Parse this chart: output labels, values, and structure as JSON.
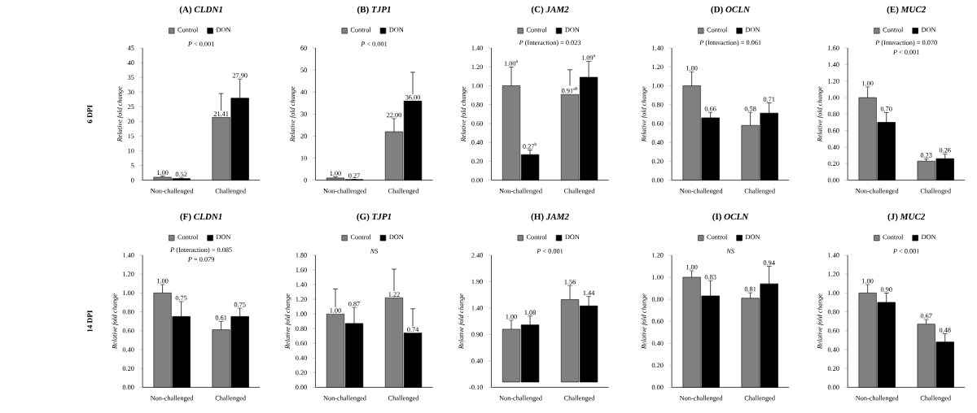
{
  "chart_data": [
    {
      "type": "bar",
      "title": "(A) *CLDN1*",
      "ylabel": "Relative fold change",
      "categories": [
        "Non-challenged",
        "Challenged"
      ],
      "ylim": [
        0,
        45
      ],
      "yticks": [
        0,
        5,
        10,
        15,
        20,
        25,
        30,
        35,
        40,
        45
      ],
      "legend": "top",
      "annotations": [
        "6 DPI",
        "*P* < 0.001"
      ],
      "series": [
        {
          "name": "Control",
          "color": "#808080",
          "values": [
            1.0,
            21.41
          ],
          "errors": [
            [
              1.0,
              1.4
            ],
            [
              21.41,
              29.5
            ]
          ],
          "value_labels": [
            "1.00",
            "21.41"
          ]
        },
        {
          "name": "DON",
          "color": "#000000",
          "values": [
            0.52,
            27.9
          ],
          "errors": [
            [
              0.52,
              0.8
            ],
            [
              27.9,
              34.5
            ]
          ],
          "value_labels": [
            "0.52",
            "27.90"
          ]
        }
      ]
    },
    {
      "type": "bar",
      "title": "(B) *TJP1*",
      "ylabel": "Relative fold change",
      "categories": [
        "Non-challenged",
        "Challenged"
      ],
      "ylim": [
        0,
        60
      ],
      "yticks": [
        0,
        10,
        20,
        30,
        40,
        50,
        60
      ],
      "legend": "top",
      "annotations": [
        "*P* < 0.001"
      ],
      "series": [
        {
          "name": "Control",
          "color": "#808080",
          "values": [
            1.0,
            22.0
          ],
          "errors": [
            [
              1.0,
              1.5
            ],
            [
              22.0,
              28
            ]
          ],
          "value_labels": [
            "1.00",
            "22.00"
          ]
        },
        {
          "name": "DON",
          "color": "#000000",
          "values": [
            0.27,
            36.0
          ],
          "errors": [
            [
              0.27,
              0.5
            ],
            [
              36.0,
              49
            ]
          ],
          "value_labels": [
            "0.27",
            "36.00"
          ]
        }
      ]
    },
    {
      "type": "bar",
      "title": "(C) *JAM2*",
      "ylabel": "Relative fold change",
      "categories": [
        "Non-challenged",
        "Challenged"
      ],
      "ylim": [
        0,
        1.4
      ],
      "yticks": [
        {
          "value": 0,
          "label": "0.00"
        },
        {
          "value": 0.2,
          "label": "0.20"
        },
        {
          "value": 0.4,
          "label": "0.40"
        },
        {
          "value": 0.6,
          "label": "0.60"
        },
        {
          "value": 0.8,
          "label": "0.80"
        },
        {
          "value": 1.0,
          "label": "1.00"
        },
        {
          "value": 1.2,
          "label": "1.20"
        },
        {
          "value": 1.4,
          "label": "1.40"
        }
      ],
      "legend": "top",
      "annotations": [
        "*P* (Interaction) = 0.023"
      ],
      "series": [
        {
          "name": "Control",
          "color": "#808080",
          "values": [
            1.0,
            0.91
          ],
          "errors": [
            [
              1.0,
              1.2
            ],
            [
              0.91,
              1.17
            ]
          ],
          "value_labels": [
            "1.00$^{a}$",
            "0.91$^{ab}$"
          ]
        },
        {
          "name": "DON",
          "color": "#000000",
          "values": [
            0.27,
            1.09
          ],
          "errors": [
            [
              0.27,
              0.32
            ],
            [
              1.09,
              1.26
            ]
          ],
          "value_labels": [
            "0.27$^{b}$",
            "1.09$^{a}$"
          ]
        }
      ]
    },
    {
      "type": "bar",
      "title": "(D) *OCLN*",
      "ylabel": "Relative fold change",
      "categories": [
        "Non-challenged",
        "Challenged"
      ],
      "ylim": [
        0,
        1.4
      ],
      "yticks": [
        {
          "value": 0,
          "label": "0.00"
        },
        {
          "value": 0.2,
          "label": "0.20"
        },
        {
          "value": 0.4,
          "label": "0.40"
        },
        {
          "value": 0.6,
          "label": "0.60"
        },
        {
          "value": 0.8,
          "label": "0.80"
        },
        {
          "value": 1.0,
          "label": "1.00"
        },
        {
          "value": 1.2,
          "label": "1.20"
        },
        {
          "value": 1.4,
          "label": "1.40"
        }
      ],
      "legend": "top",
      "annotations": [
        "*P* (Interaction) = 0.061"
      ],
      "series": [
        {
          "name": "Control",
          "color": "#808080",
          "values": [
            1.0,
            0.58
          ],
          "errors": [
            [
              1.0,
              1.15
            ],
            [
              0.58,
              0.72
            ]
          ],
          "value_labels": [
            "1.00",
            "0.58"
          ]
        },
        {
          "name": "DON",
          "color": "#000000",
          "values": [
            0.66,
            0.71
          ],
          "errors": [
            [
              0.66,
              0.72
            ],
            [
              0.71,
              0.82
            ]
          ],
          "value_labels": [
            "0.66",
            "0.71"
          ]
        }
      ]
    },
    {
      "type": "bar",
      "title": "(E) *MUC2*",
      "ylabel": "Relative fold change",
      "categories": [
        "Non-challenged",
        "Challenged"
      ],
      "ylim": [
        0,
        1.6
      ],
      "yticks": [
        {
          "value": 0,
          "label": "0.00"
        },
        {
          "value": 0.2,
          "label": "0.20"
        },
        {
          "value": 0.4,
          "label": "0.40"
        },
        {
          "value": 0.6,
          "label": "0.60"
        },
        {
          "value": 0.8,
          "label": "0.80"
        },
        {
          "value": 1.0,
          "label": "1.00"
        },
        {
          "value": 1.2,
          "label": "1.20"
        },
        {
          "value": 1.4,
          "label": "1.40"
        },
        {
          "value": 1.6,
          "label": "1.60"
        }
      ],
      "legend": "top",
      "annotations": [
        "*P* (Interaction) = 0.070",
        "*P* < 0.001"
      ],
      "series": [
        {
          "name": "Control",
          "color": "#808080",
          "values": [
            1.0,
            0.23
          ],
          "errors": [
            [
              1.0,
              1.13
            ],
            [
              0.23,
              0.26
            ]
          ],
          "value_labels": [
            "1.00",
            "0.23"
          ]
        },
        {
          "name": "DON",
          "color": "#000000",
          "values": [
            0.7,
            0.26
          ],
          "errors": [
            [
              0.7,
              0.82
            ],
            [
              0.26,
              0.32
            ]
          ],
          "value_labels": [
            "0.70",
            "0.26"
          ]
        }
      ]
    },
    {
      "type": "bar",
      "title": "(F) *CLDN1*",
      "ylabel": "Relative fold change",
      "categories": [
        "Non-challenged",
        "Challenged"
      ],
      "ylim": [
        0,
        1.4
      ],
      "yticks": [
        {
          "value": 0,
          "label": "0.00"
        },
        {
          "value": 0.2,
          "label": "0.20"
        },
        {
          "value": 0.4,
          "label": "0.40"
        },
        {
          "value": 0.6,
          "label": "0.60"
        },
        {
          "value": 0.8,
          "label": "0.80"
        },
        {
          "value": 1.0,
          "label": "1.00"
        },
        {
          "value": 1.2,
          "label": "1.20"
        },
        {
          "value": 1.4,
          "label": "1.40"
        }
      ],
      "legend": "top",
      "annotations": [
        "14 DPI",
        "*P* (Interaction) = 0.085",
        "*P* = 0.079"
      ],
      "series": [
        {
          "name": "Control",
          "color": "#808080",
          "values": [
            1.0,
            0.61
          ],
          "errors": [
            [
              1.0,
              1.09
            ],
            [
              0.61,
              0.7
            ]
          ],
          "value_labels": [
            "1.00",
            "0.61"
          ]
        },
        {
          "name": "DON",
          "color": "#000000",
          "values": [
            0.75,
            0.75
          ],
          "errors": [
            [
              0.75,
              0.91
            ],
            [
              0.75,
              0.84
            ]
          ],
          "value_labels": [
            "0.75",
            "0.75"
          ]
        }
      ]
    },
    {
      "type": "bar",
      "title": "(G) *TJP1*",
      "ylabel": "Relative fold change",
      "categories": [
        "Non-challenged",
        "Challenged"
      ],
      "ylim": [
        0,
        1.8
      ],
      "yticks": [
        {
          "value": 0,
          "label": "0.00"
        },
        {
          "value": 0.2,
          "label": "0.20"
        },
        {
          "value": 0.4,
          "label": "0.40"
        },
        {
          "value": 0.6,
          "label": "0.60"
        },
        {
          "value": 0.8,
          "label": "0.80"
        },
        {
          "value": 1.0,
          "label": "1.00"
        },
        {
          "value": 1.2,
          "label": "1.20"
        },
        {
          "value": 1.4,
          "label": "1.40"
        },
        {
          "value": 1.6,
          "label": "1.60"
        },
        {
          "value": 1.8,
          "label": "1.80"
        }
      ],
      "legend": "top",
      "annotations": [
        "*NS*"
      ],
      "series": [
        {
          "name": "Control",
          "color": "#808080",
          "values": [
            1.0,
            1.22
          ],
          "errors": [
            [
              1.0,
              1.34
            ],
            [
              1.22,
              1.61
            ]
          ],
          "value_labels": [
            "1.00",
            "1.22"
          ]
        },
        {
          "name": "DON",
          "color": "#000000",
          "values": [
            0.87,
            0.74
          ],
          "errors": [
            [
              0.87,
              1.09
            ],
            [
              0.74,
              1.07
            ]
          ],
          "value_labels": [
            "0.87",
            "0.74"
          ]
        }
      ]
    },
    {
      "type": "bar",
      "title": "(H) *JAM2*",
      "ylabel": "Relative fold change",
      "categories": [
        "Non-challenged",
        "Challenged"
      ],
      "ylim": [
        -0.1,
        2.4
      ],
      "yticks": [
        {
          "value": -0.1,
          "label": "-0.10"
        },
        {
          "value": 0.4,
          "label": "0.40"
        },
        {
          "value": 0.9,
          "label": "0.90"
        },
        {
          "value": 1.4,
          "label": "1.40"
        },
        {
          "value": 1.9,
          "label": "1.90"
        },
        {
          "value": 2.4,
          "label": "2.40"
        }
      ],
      "legend": "top",
      "annotations": [
        "*P* < 0.001"
      ],
      "series": [
        {
          "name": "Control",
          "color": "#808080",
          "values": [
            1.0,
            1.56
          ],
          "errors": [
            [
              1.0,
              1.17
            ],
            [
              1.56,
              1.83
            ]
          ],
          "value_labels": [
            "1.00",
            "1.56"
          ]
        },
        {
          "name": "DON",
          "color": "#000000",
          "values": [
            1.08,
            1.44
          ],
          "errors": [
            [
              1.08,
              1.25
            ],
            [
              1.44,
              1.62
            ]
          ],
          "value_labels": [
            "1.08",
            "1.44"
          ]
        }
      ]
    },
    {
      "type": "bar",
      "title": "(I) *OCLN*",
      "ylabel": "Relative fold change",
      "categories": [
        "Non-challenged",
        "Challenged"
      ],
      "ylim": [
        0,
        1.2
      ],
      "yticks": [
        {
          "value": 0,
          "label": "0.00"
        },
        {
          "value": 0.2,
          "label": "0.20"
        },
        {
          "value": 0.4,
          "label": "0.40"
        },
        {
          "value": 0.6,
          "label": "0.60"
        },
        {
          "value": 0.8,
          "label": "0.80"
        },
        {
          "value": 1.0,
          "label": "1.00"
        },
        {
          "value": 1.2,
          "label": "1.20"
        }
      ],
      "legend": "top",
      "annotations": [
        "*NS*"
      ],
      "series": [
        {
          "name": "Control",
          "color": "#808080",
          "values": [
            1.0,
            0.81
          ],
          "errors": [
            [
              1.0,
              1.06
            ],
            [
              0.81,
              0.86
            ]
          ],
          "value_labels": [
            "1.00",
            "0.81"
          ]
        },
        {
          "name": "DON",
          "color": "#000000",
          "values": [
            0.83,
            0.94
          ],
          "errors": [
            [
              0.83,
              0.97
            ],
            [
              0.94,
              1.1
            ]
          ],
          "value_labels": [
            "0.83",
            "0.94"
          ]
        }
      ]
    },
    {
      "type": "bar",
      "title": "(J) *MUC2*",
      "ylabel": "Relative fold change",
      "categories": [
        "Non-challenged",
        "Challenged"
      ],
      "ylim": [
        0,
        1.4
      ],
      "yticks": [
        {
          "value": 0,
          "label": "0.00"
        },
        {
          "value": 0.2,
          "label": "0.20"
        },
        {
          "value": 0.4,
          "label": "0.40"
        },
        {
          "value": 0.6,
          "label": "0.60"
        },
        {
          "value": 0.8,
          "label": "0.80"
        },
        {
          "value": 1.0,
          "label": "1.00"
        },
        {
          "value": 1.2,
          "label": "1.20"
        },
        {
          "value": 1.4,
          "label": "1.40"
        }
      ],
      "legend": "top",
      "annotations": [
        "*P* < 0.001"
      ],
      "series": [
        {
          "name": "Control",
          "color": "#808080",
          "values": [
            1.0,
            0.67
          ],
          "errors": [
            [
              1.0,
              1.09
            ],
            [
              0.67,
              0.72
            ]
          ],
          "value_labels": [
            "1.00",
            "0.67"
          ]
        },
        {
          "name": "DON",
          "color": "#000000",
          "values": [
            0.9,
            0.48
          ],
          "errors": [
            [
              0.9,
              1.0
            ],
            [
              0.48,
              0.57
            ]
          ],
          "value_labels": [
            "0.90",
            "0.48"
          ]
        }
      ]
    }
  ]
}
